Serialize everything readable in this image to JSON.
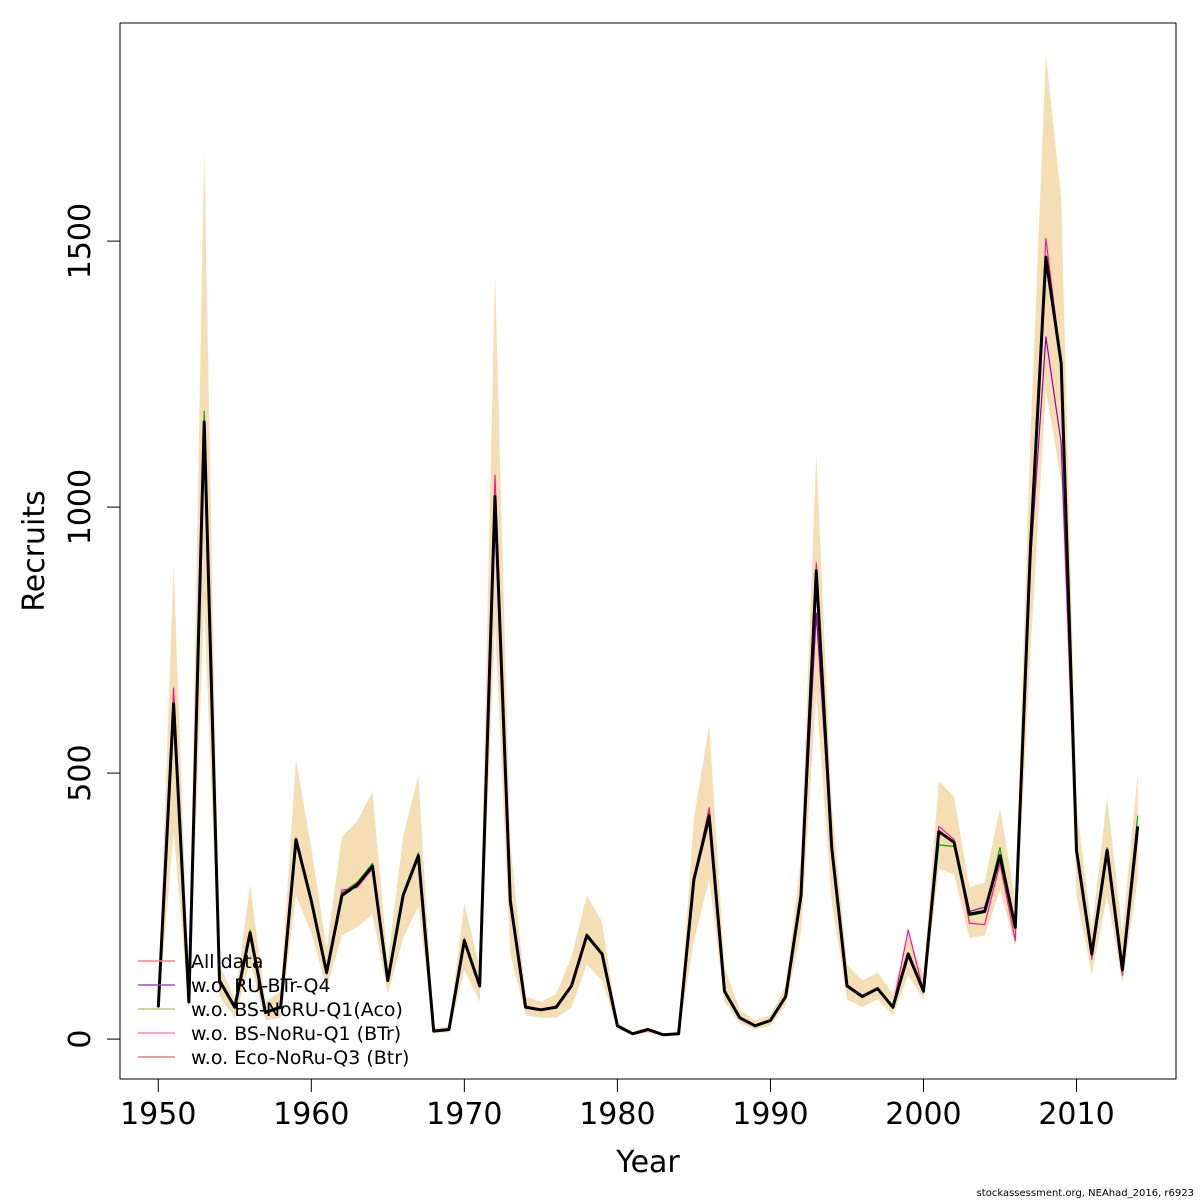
{
  "chart_data": {
    "type": "line",
    "xlabel": "Year",
    "ylabel": "Recruits",
    "xlim": [
      1947.5,
      2016.5
    ],
    "ylim": [
      -75,
      1910
    ],
    "x_ticks": [
      1950,
      1960,
      1970,
      1980,
      1990,
      2000,
      2010
    ],
    "y_ticks": [
      0,
      500,
      1000,
      1500
    ],
    "grid": false,
    "legend_position": "bottom-left",
    "band_color": "#f5deb3",
    "x": [
      1950,
      1951,
      1952,
      1953,
      1954,
      1955,
      1956,
      1957,
      1958,
      1959,
      1960,
      1961,
      1962,
      1963,
      1964,
      1965,
      1966,
      1967,
      1968,
      1969,
      1970,
      1971,
      1972,
      1973,
      1974,
      1975,
      1976,
      1977,
      1978,
      1979,
      1980,
      1981,
      1982,
      1983,
      1984,
      1985,
      1986,
      1987,
      1988,
      1989,
      1990,
      1991,
      1992,
      1993,
      1994,
      1995,
      1996,
      1997,
      1998,
      1999,
      2000,
      2001,
      2002,
      2003,
      2004,
      2005,
      2006,
      2007,
      2008,
      2009,
      2010,
      2011,
      2012,
      2013,
      2014
    ],
    "confidence_band": {
      "lower": [
        50,
        390,
        55,
        820,
        80,
        40,
        145,
        35,
        40,
        270,
        200,
        95,
        195,
        210,
        235,
        85,
        190,
        250,
        12,
        12,
        130,
        70,
        780,
        160,
        45,
        40,
        40,
        60,
        140,
        110,
        18,
        8,
        12,
        5,
        7,
        185,
        300,
        70,
        30,
        18,
        25,
        65,
        200,
        650,
        260,
        75,
        60,
        75,
        45,
        120,
        75,
        320,
        310,
        190,
        195,
        280,
        175,
        730,
        1220,
        1050,
        270,
        120,
        270,
        105,
        300
      ],
      "upper": [
        80,
        890,
        95,
        1670,
        140,
        75,
        290,
        70,
        90,
        525,
        360,
        170,
        380,
        410,
        465,
        145,
        380,
        495,
        20,
        25,
        255,
        135,
        1440,
        370,
        80,
        70,
        85,
        155,
        270,
        220,
        30,
        14,
        22,
        10,
        12,
        415,
        590,
        135,
        55,
        35,
        45,
        100,
        340,
        1100,
        440,
        140,
        110,
        125,
        85,
        195,
        120,
        485,
        455,
        285,
        295,
        435,
        260,
        1140,
        1850,
        1580,
        440,
        205,
        455,
        200,
        500
      ]
    },
    "series": [
      {
        "name": "All data",
        "color": "#ff0000",
        "values": [
          60,
          630,
          70,
          1160,
          110,
          60,
          200,
          50,
          60,
          375,
          260,
          125,
          270,
          290,
          325,
          110,
          270,
          345,
          15,
          18,
          185,
          100,
          1020,
          260,
          60,
          55,
          60,
          100,
          195,
          160,
          25,
          10,
          18,
          8,
          10,
          300,
          420,
          90,
          40,
          25,
          35,
          80,
          270,
          880,
          360,
          100,
          80,
          95,
          60,
          160,
          90,
          390,
          370,
          235,
          240,
          345,
          210,
          930,
          1460,
          1270,
          355,
          160,
          355,
          130,
          390
        ]
      },
      {
        "name": "w.o. RU-BTr-Q4",
        "color": "#9900aa",
        "values": [
          62,
          610,
          72,
          1120,
          112,
          62,
          198,
          52,
          62,
          368,
          258,
          128,
          272,
          292,
          322,
          112,
          272,
          342,
          16,
          19,
          182,
          102,
          1000,
          262,
          62,
          56,
          62,
          102,
          192,
          158,
          25,
          11,
          18,
          8,
          10,
          295,
          410,
          92,
          41,
          26,
          36,
          82,
          265,
          800,
          355,
          102,
          82,
          96,
          62,
          158,
          92,
          392,
          368,
          240,
          248,
          340,
          212,
          900,
          1320,
          1120,
          350,
          162,
          350,
          132,
          385
        ]
      },
      {
        "name": "w.o. BS-NoRU-Q1(Aco)",
        "color": "#00aa00",
        "values": [
          58,
          640,
          68,
          1180,
          108,
          58,
          205,
          48,
          58,
          378,
          262,
          122,
          275,
          295,
          330,
          108,
          275,
          350,
          15,
          17,
          188,
          98,
          1030,
          258,
          58,
          54,
          58,
          98,
          198,
          162,
          24,
          10,
          17,
          8,
          10,
          305,
          425,
          88,
          39,
          24,
          34,
          78,
          275,
          890,
          365,
          98,
          78,
          94,
          58,
          162,
          88,
          365,
          362,
          232,
          238,
          360,
          208,
          950,
          1455,
          1275,
          360,
          158,
          360,
          128,
          420
        ]
      },
      {
        "name": "w.o. BS-NoRu-Q1 (BTr)",
        "color": "#ff1493",
        "values": [
          60,
          660,
          70,
          1160,
          110,
          60,
          200,
          50,
          60,
          375,
          260,
          125,
          280,
          285,
          320,
          110,
          270,
          345,
          15,
          18,
          190,
          100,
          1060,
          260,
          60,
          55,
          60,
          100,
          195,
          160,
          25,
          10,
          18,
          8,
          10,
          300,
          435,
          90,
          40,
          25,
          35,
          80,
          275,
          895,
          360,
          100,
          80,
          95,
          60,
          205,
          90,
          400,
          375,
          218,
          215,
          330,
          185,
          930,
          1505,
          1270,
          355,
          150,
          350,
          120,
          380
        ]
      },
      {
        "name": "w.o. Eco-NoRu-Q3 (Btr)",
        "color": "#cc3300",
        "values": [
          60,
          625,
          70,
          1150,
          110,
          60,
          200,
          50,
          60,
          372,
          260,
          125,
          270,
          288,
          324,
          110,
          270,
          344,
          15,
          18,
          184,
          100,
          1015,
          260,
          60,
          55,
          60,
          100,
          195,
          160,
          25,
          10,
          18,
          8,
          10,
          298,
          418,
          90,
          40,
          25,
          35,
          80,
          268,
          875,
          358,
          100,
          80,
          95,
          60,
          160,
          90,
          388,
          370,
          236,
          242,
          344,
          210,
          925,
          1455,
          1265,
          354,
          160,
          354,
          130,
          388
        ]
      },
      {
        "name": "",
        "color": "#000000",
        "values": [
          60,
          630,
          70,
          1160,
          110,
          60,
          200,
          50,
          60,
          375,
          260,
          125,
          270,
          290,
          325,
          110,
          270,
          345,
          15,
          18,
          185,
          100,
          1020,
          260,
          60,
          55,
          60,
          100,
          195,
          160,
          25,
          10,
          18,
          8,
          10,
          300,
          420,
          90,
          40,
          25,
          35,
          80,
          270,
          880,
          360,
          100,
          80,
          95,
          60,
          160,
          90,
          390,
          370,
          235,
          240,
          345,
          210,
          930,
          1470,
          1270,
          355,
          160,
          355,
          130,
          400
        ]
      }
    ],
    "legend_entries": [
      "All data",
      "w.o. RU-BTr-Q4",
      "w.o. BS-NoRU-Q1(Aco)",
      "w.o. BS-NoRu-Q1 (BTr)",
      "w.o. Eco-NoRu-Q3 (Btr)"
    ],
    "legend_colors": [
      "#ff8080",
      "#a050b8",
      "#b8cc80",
      "#ff80c8",
      "#e08080"
    ]
  },
  "footer": "stockassessment.org, NEAhad_2016, r6923"
}
